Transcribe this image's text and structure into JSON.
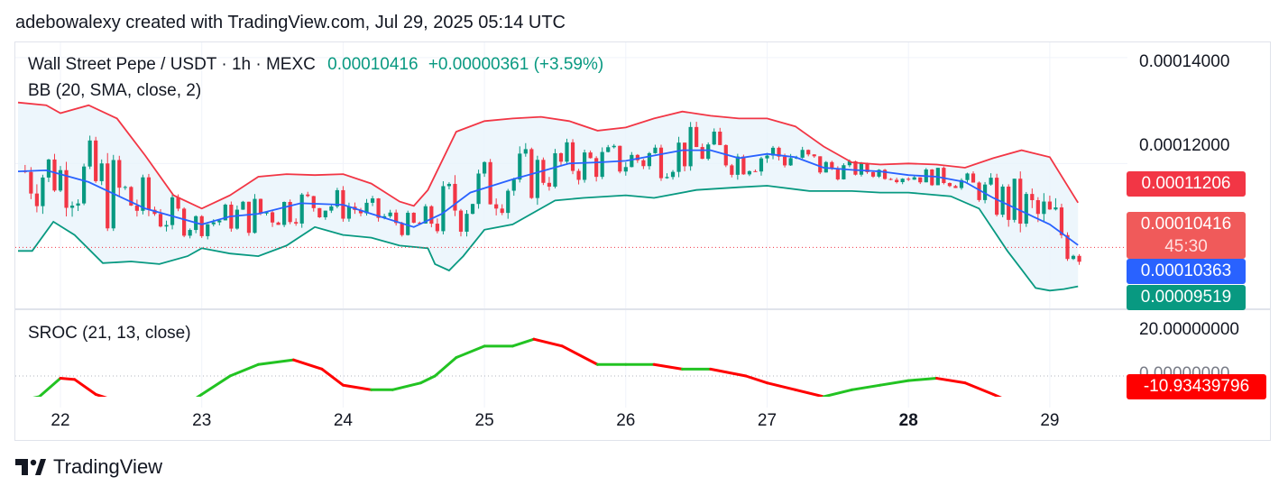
{
  "header": {
    "caption": "adebowalexy created with TradingView.com, Jul 29, 2025 05:14 UTC"
  },
  "legend": {
    "symbol": "Wall Street Pepe / USDT · 1h · MEXC",
    "last_price": "0.00010416",
    "change": "+0.00000361 (+3.59%)",
    "bb_label": "BB (20, SMA, close, 2)",
    "sroc_label": "SROC (21, 13, close)"
  },
  "price_axis": {
    "ticks": [
      "0.00014000",
      "0.00012000"
    ],
    "upper_band_label": "0.00011206",
    "last_price_label": "0.00010416",
    "countdown": "45:30",
    "basis_label": "0.00010363",
    "lower_band_label": "0.00009519"
  },
  "sroc_axis": {
    "ticks": [
      "20.00000000",
      "0.00000000"
    ],
    "value_label": "-10.93439796"
  },
  "colors": {
    "up": "#089981",
    "down": "#f23645",
    "upper_band": "#f23645",
    "basis": "#2962ff",
    "lower_band": "#089981",
    "band_fill": "#e8f4fb",
    "sroc_up": "#22c322",
    "sroc_down": "#ff0000",
    "price_label_bg": "#f05a5a",
    "basis_label_bg": "#2962ff",
    "lower_label_bg": "#089981",
    "sroc_label_bg": "#ff0000"
  },
  "footer": {
    "brand": "TradingView",
    "icon": "tradingview-logo-icon"
  },
  "chart_data": {
    "type": "line",
    "title": "Wall Street Pepe / USDT · 1h · MEXC",
    "x_ticks": [
      "22",
      "23",
      "24",
      "25",
      "26",
      "27",
      "28",
      "29"
    ],
    "x_bold": "28",
    "ylim": [
      9.35e-05,
      0.0001415
    ],
    "grid": true,
    "series": [
      {
        "name": "BB upper",
        "x": [
          21.7,
          21.9,
          22.0,
          22.2,
          22.4,
          22.6,
          22.8,
          23.0,
          23.2,
          23.4,
          23.6,
          23.8,
          24.0,
          24.2,
          24.4,
          24.5,
          24.6,
          24.8,
          25.0,
          25.2,
          25.4,
          25.6,
          25.8,
          26.0,
          26.2,
          26.4,
          26.6,
          26.8,
          27.0,
          27.2,
          27.4,
          27.6,
          27.8,
          28.0,
          28.2,
          28.4,
          28.6,
          28.8,
          29.0,
          29.2
        ],
        "values": [
          0.0001315,
          0.000131,
          0.0001295,
          0.000131,
          0.0001285,
          0.0001215,
          0.000114,
          0.0001115,
          0.000114,
          0.0001175,
          0.000118,
          0.0001178,
          0.000118,
          0.0001162,
          0.0001128,
          0.000112,
          0.000115,
          0.000126,
          0.000128,
          0.0001285,
          0.0001288,
          0.000128,
          0.0001262,
          0.0001268,
          0.0001285,
          0.0001298,
          0.000129,
          0.0001285,
          0.0001285,
          0.000127,
          0.0001232,
          0.0001202,
          0.0001198,
          0.00012,
          0.0001198,
          0.0001192,
          0.000121,
          0.0001225,
          0.0001212,
          0.0001126
        ]
      },
      {
        "name": "BB basis",
        "x": [
          21.7,
          21.9,
          22.2,
          22.6,
          23.0,
          23.2,
          23.4,
          23.7,
          24.0,
          24.2,
          24.5,
          24.7,
          24.9,
          25.2,
          25.4,
          25.6,
          25.8,
          26.0,
          26.2,
          26.4,
          26.6,
          26.8,
          27.0,
          27.2,
          27.4,
          27.6,
          27.8,
          28.0,
          28.2,
          28.4,
          28.6,
          28.8,
          29.0,
          29.2
        ],
        "values": [
          0.0001185,
          0.0001187,
          0.0001165,
          0.0001115,
          0.0001085,
          0.00011,
          0.0001105,
          0.0001125,
          0.0001122,
          0.0001105,
          0.000108,
          0.0001105,
          0.0001145,
          0.000117,
          0.0001185,
          0.00012,
          0.0001202,
          0.0001205,
          0.0001215,
          0.0001225,
          0.0001225,
          0.000121,
          0.0001218,
          0.0001212,
          0.0001192,
          0.0001188,
          0.0001185,
          0.0001178,
          0.0001175,
          0.0001165,
          0.0001135,
          0.000111,
          0.0001085,
          0.0001046
        ]
      },
      {
        "name": "BB lower",
        "x": [
          21.7,
          21.8,
          21.95,
          22.1,
          22.3,
          22.5,
          22.7,
          22.9,
          23.0,
          23.2,
          23.4,
          23.6,
          23.8,
          24.0,
          24.2,
          24.4,
          24.6,
          24.65,
          24.75,
          24.85,
          25.0,
          25.2,
          25.5,
          25.7,
          26.0,
          26.2,
          26.5,
          26.8,
          27.0,
          27.3,
          27.6,
          27.8,
          28.0,
          28.3,
          28.5,
          28.7,
          28.8,
          28.9,
          29.0,
          29.1,
          29.2
        ],
        "values": [
          0.0001035,
          0.0001035,
          0.000109,
          0.0001065,
          0.0001012,
          0.0001015,
          0.000101,
          0.0001025,
          0.000104,
          0.000103,
          0.0001025,
          0.0001045,
          0.000108,
          0.0001065,
          0.000106,
          0.0001045,
          0.000104,
          0.000101,
          9.98e-05,
          0.0001025,
          0.0001075,
          0.0001085,
          0.000113,
          0.0001135,
          0.000114,
          0.0001135,
          0.000115,
          0.0001155,
          0.0001158,
          0.0001148,
          0.0001148,
          0.0001145,
          0.0001145,
          0.0001138,
          0.0001115,
          0.0001035,
          0.0001,
          9.65e-05,
          9.6e-05,
          9.63e-05,
          9.68e-05
        ]
      },
      {
        "name": "SROC",
        "x": [
          21.7,
          21.85,
          22.0,
          22.1,
          22.25,
          22.45,
          22.65,
          22.85,
          23.0,
          23.2,
          23.4,
          23.65,
          23.85,
          24.0,
          24.2,
          24.35,
          24.55,
          24.65,
          24.8,
          25.0,
          25.2,
          25.35,
          25.55,
          25.8,
          26.0,
          26.2,
          26.4,
          26.6,
          26.85,
          27.0,
          27.2,
          27.4,
          27.6,
          27.8,
          28.0,
          28.2,
          28.4,
          28.6,
          28.75
        ],
        "values": [
          -11,
          -9,
          -1,
          -1.5,
          -8,
          -12,
          -14,
          -14,
          -8,
          0,
          5,
          7,
          3,
          -4,
          -6,
          -6,
          -3,
          0,
          8,
          13,
          13,
          16,
          13,
          5,
          5,
          5,
          3,
          3,
          0,
          -3,
          -6,
          -9,
          -6,
          -4,
          -2,
          -1,
          -3,
          -8,
          -12
        ]
      }
    ]
  }
}
